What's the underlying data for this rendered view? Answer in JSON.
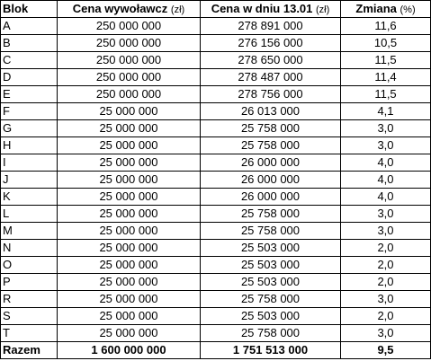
{
  "table": {
    "header": [
      {
        "text": "Blok"
      },
      {
        "text": "Cena wywoławcz",
        "unit": "(zł)"
      },
      {
        "text": "Cena w dniu 13.01",
        "unit": "(zł)"
      },
      {
        "text": "Zmiana",
        "unit": "(%)"
      }
    ],
    "rows": [
      [
        "A",
        "250 000 000",
        "278 891 000",
        "11,6"
      ],
      [
        "B",
        "250 000 000",
        "276 156 000",
        "10,5"
      ],
      [
        "C",
        "250 000 000",
        "278 650 000",
        "11,5"
      ],
      [
        "D",
        "250 000 000",
        "278 487 000",
        "11,4"
      ],
      [
        "E",
        "250 000 000",
        "278 756 000",
        "11,5"
      ],
      [
        "F",
        "25 000 000",
        "26 013 000",
        "4,1"
      ],
      [
        "G",
        "25 000 000",
        "25 758 000",
        "3,0"
      ],
      [
        "H",
        "25 000 000",
        "25 758 000",
        "3,0"
      ],
      [
        "I",
        "25 000 000",
        "26 000 000",
        "4,0"
      ],
      [
        "J",
        "25 000 000",
        "26 000 000",
        "4,0"
      ],
      [
        "K",
        "25 000 000",
        "26 000 000",
        "4,0"
      ],
      [
        "L",
        "25 000 000",
        "25 758 000",
        "3,0"
      ],
      [
        "M",
        "25 000 000",
        "25 758 000",
        "3,0"
      ],
      [
        "N",
        "25 000 000",
        "25 503 000",
        "2,0"
      ],
      [
        "O",
        "25 000 000",
        "25 503 000",
        "2,0"
      ],
      [
        "P",
        "25 000 000",
        "25 503 000",
        "2,0"
      ],
      [
        "R",
        "25 000 000",
        "25 758 000",
        "3,0"
      ],
      [
        "S",
        "25 000 000",
        "25 503 000",
        "2,0"
      ],
      [
        "T",
        "25 000 000",
        "25 758 000",
        "3,0"
      ]
    ],
    "total": [
      "Razem",
      "1 600 000 000",
      "1 751 513 000",
      "9,5"
    ]
  }
}
